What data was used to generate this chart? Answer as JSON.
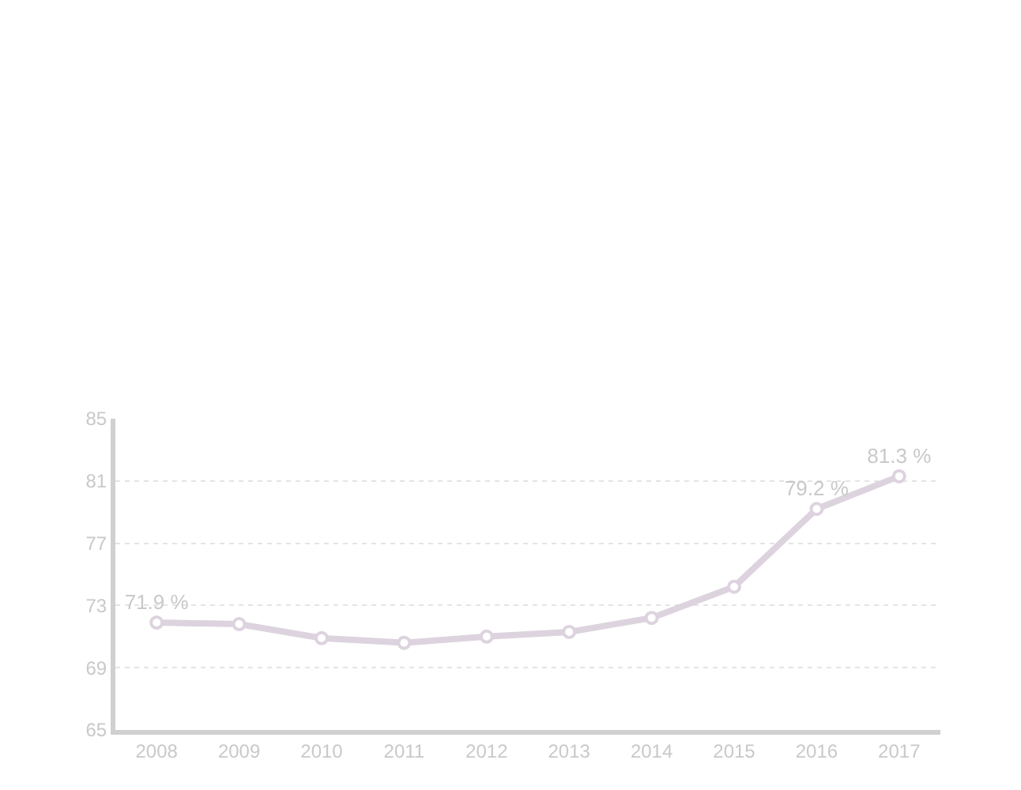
{
  "chart_data": {
    "type": "line",
    "categories": [
      "2008",
      "2009",
      "2010",
      "2011",
      "2012",
      "2013",
      "2014",
      "2015",
      "2016",
      "2017"
    ],
    "series": [
      {
        "color": "#ddd3df",
        "values": [
          71.9,
          71.8,
          70.9,
          70.6,
          71.0,
          71.3,
          72.2,
          74.2,
          79.2,
          81.3
        ],
        "value_labels": [
          "71.9 %",
          null,
          null,
          null,
          null,
          null,
          null,
          null,
          "79.2 %",
          "81.3 %"
        ]
      }
    ],
    "ylim": [
      65,
      85
    ],
    "yticks": [
      65,
      69,
      73,
      77,
      81,
      85
    ],
    "grid": "y",
    "marker": "circle",
    "line_style": "solid",
    "legend": false
  }
}
